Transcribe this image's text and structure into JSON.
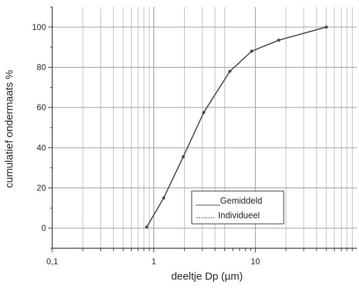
{
  "chart_data": {
    "type": "line",
    "title": "",
    "xlabel": "deeltje Dp (µm)",
    "ylabel": "cumulatief ondermaats %",
    "x_scale": "log",
    "xlim": [
      0.1,
      100
    ],
    "ylim": [
      -10,
      110
    ],
    "x_ticks": [
      {
        "value": 0.1,
        "label": "0,1"
      },
      {
        "value": 1,
        "label": "1"
      },
      {
        "value": 10,
        "label": "10"
      }
    ],
    "y_ticks": [
      {
        "value": 0,
        "label": "0"
      },
      {
        "value": 20,
        "label": "20"
      },
      {
        "value": 40,
        "label": "40"
      },
      {
        "value": 60,
        "label": "60"
      },
      {
        "value": 80,
        "label": "80"
      },
      {
        "value": 100,
        "label": "100"
      }
    ],
    "grid": true,
    "legend_position": "bottom-right",
    "legend": [
      {
        "name": "Gemiddeld",
        "marker": "_____"
      },
      {
        "name": "Individueel",
        "marker": "........"
      }
    ],
    "series": [
      {
        "name": "Gemiddeld",
        "style": "solid",
        "x": [
          0.85,
          1.25,
          1.95,
          3.1,
          5.6,
          9.2,
          17,
          50
        ],
        "y": [
          0.5,
          15,
          35.5,
          57.5,
          78,
          88,
          93.5,
          100
        ]
      }
    ],
    "colors": {
      "line": "#444444",
      "grid": "#b8b8b8",
      "axis": "#333333"
    }
  }
}
